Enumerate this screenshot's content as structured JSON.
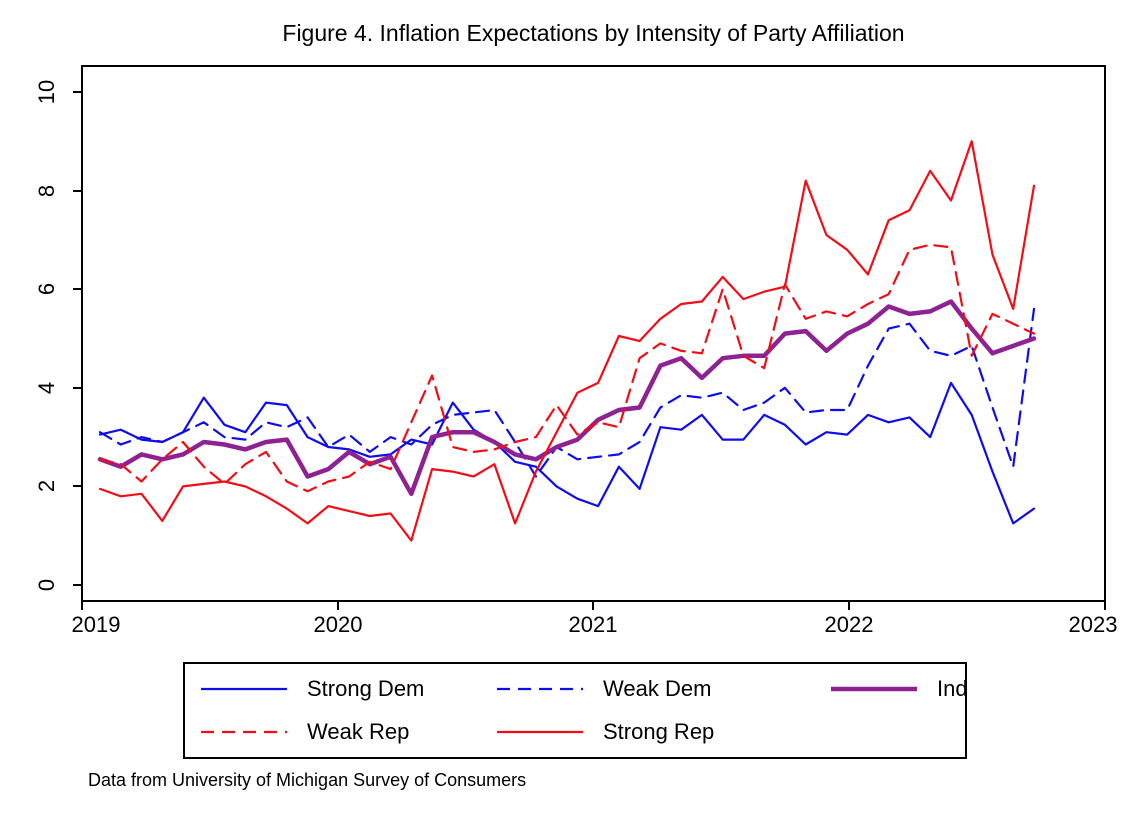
{
  "figure": {
    "caption": "Data from University of Michigan Survey of Consumers"
  },
  "chart_data": {
    "type": "line",
    "title": "Figure 4. Inflation Expectations by Intensity of Party Affiliation",
    "xlabel": "",
    "ylabel": "",
    "grid": false,
    "legend_position": "bottom",
    "x_axis": {
      "ticks": [
        "2019",
        "2020",
        "2021",
        "2022",
        "2023"
      ],
      "range": [
        2019,
        2023
      ]
    },
    "y_axis": {
      "ticks": [
        "0",
        "2",
        "4",
        "6",
        "8",
        "10"
      ],
      "range": [
        0,
        10
      ]
    },
    "months": [
      "2019-01",
      "2019-02",
      "2019-03",
      "2019-04",
      "2019-05",
      "2019-06",
      "2019-07",
      "2019-08",
      "2019-09",
      "2019-10",
      "2019-11",
      "2019-12",
      "2020-01",
      "2020-02",
      "2020-03",
      "2020-04",
      "2020-05",
      "2020-06",
      "2020-07",
      "2020-08",
      "2020-09",
      "2020-10",
      "2020-11",
      "2020-12",
      "2021-01",
      "2021-02",
      "2021-03",
      "2021-04",
      "2021-05",
      "2021-06",
      "2021-07",
      "2021-08",
      "2021-09",
      "2021-10",
      "2021-11",
      "2021-12",
      "2022-01",
      "2022-02",
      "2022-03",
      "2022-04",
      "2022-05",
      "2022-06",
      "2022-07",
      "2022-08",
      "2022-09",
      "2022-10"
    ],
    "series": [
      {
        "name": "Strong Dem",
        "color": "#0d0dee",
        "style": "solid",
        "width": 2.2,
        "values": [
          3.05,
          3.15,
          2.95,
          2.9,
          3.1,
          3.8,
          3.25,
          3.1,
          3.7,
          3.65,
          3.0,
          2.8,
          2.75,
          2.6,
          2.65,
          2.95,
          2.85,
          3.7,
          3.15,
          2.9,
          2.5,
          2.4,
          2.0,
          1.75,
          1.6,
          2.4,
          1.95,
          3.2,
          3.15,
          3.45,
          2.95,
          2.95,
          3.45,
          3.25,
          2.85,
          3.1,
          3.05,
          3.45,
          3.3,
          3.4,
          3.0,
          4.1,
          3.45,
          2.3,
          1.25,
          1.55
        ]
      },
      {
        "name": "Weak Dem",
        "color": "#0d0dee",
        "style": "dashed",
        "width": 2.2,
        "values": [
          3.1,
          2.85,
          3.0,
          2.9,
          3.1,
          3.3,
          3.0,
          2.95,
          3.3,
          3.2,
          3.4,
          2.8,
          3.05,
          2.7,
          3.0,
          2.85,
          3.25,
          3.45,
          3.5,
          3.55,
          2.9,
          2.2,
          2.8,
          2.55,
          2.6,
          2.65,
          2.9,
          3.6,
          3.85,
          3.8,
          3.9,
          3.55,
          3.7,
          4.0,
          3.5,
          3.55,
          3.55,
          4.45,
          5.2,
          5.3,
          4.75,
          4.65,
          4.85,
          3.6,
          2.4,
          5.6
        ]
      },
      {
        "name": "Ind",
        "color": "#8f2292",
        "style": "solid",
        "width": 4.5,
        "values": [
          2.55,
          2.4,
          2.65,
          2.55,
          2.65,
          2.9,
          2.85,
          2.75,
          2.9,
          2.95,
          2.2,
          2.35,
          2.7,
          2.45,
          2.6,
          1.85,
          3.0,
          3.1,
          3.1,
          2.9,
          2.65,
          2.55,
          2.8,
          2.95,
          3.35,
          3.55,
          3.6,
          4.45,
          4.6,
          4.2,
          4.6,
          4.65,
          4.65,
          5.1,
          5.15,
          4.75,
          5.1,
          5.3,
          5.65,
          5.5,
          5.55,
          5.75,
          5.2,
          4.7,
          4.85,
          5.0
        ]
      },
      {
        "name": "Weak Rep",
        "color": "#f20d16",
        "style": "dashed",
        "width": 2.2,
        "values": [
          2.55,
          2.45,
          2.1,
          2.55,
          2.9,
          2.4,
          2.05,
          2.45,
          2.7,
          2.1,
          1.9,
          2.1,
          2.2,
          2.5,
          2.35,
          3.3,
          4.25,
          2.8,
          2.7,
          2.75,
          2.9,
          3.0,
          3.65,
          3.05,
          3.3,
          3.2,
          4.6,
          4.9,
          4.75,
          4.7,
          6.0,
          4.65,
          4.4,
          6.1,
          5.4,
          5.55,
          5.45,
          5.7,
          5.9,
          6.8,
          6.9,
          6.85,
          4.65,
          5.5,
          5.3,
          5.1
        ]
      },
      {
        "name": "Strong Rep",
        "color": "#f20d16",
        "style": "solid",
        "width": 2.2,
        "values": [
          1.95,
          1.8,
          1.85,
          1.3,
          2.0,
          2.05,
          2.1,
          2.0,
          1.8,
          1.55,
          1.25,
          1.6,
          1.5,
          1.4,
          1.45,
          0.9,
          2.35,
          2.3,
          2.2,
          2.45,
          1.25,
          2.3,
          3.1,
          3.9,
          4.1,
          5.05,
          4.95,
          5.4,
          5.7,
          5.75,
          6.25,
          5.8,
          5.95,
          6.05,
          8.2,
          7.1,
          6.8,
          6.3,
          7.4,
          7.6,
          8.4,
          7.8,
          9.0,
          6.7,
          5.6,
          8.1
        ]
      }
    ]
  }
}
